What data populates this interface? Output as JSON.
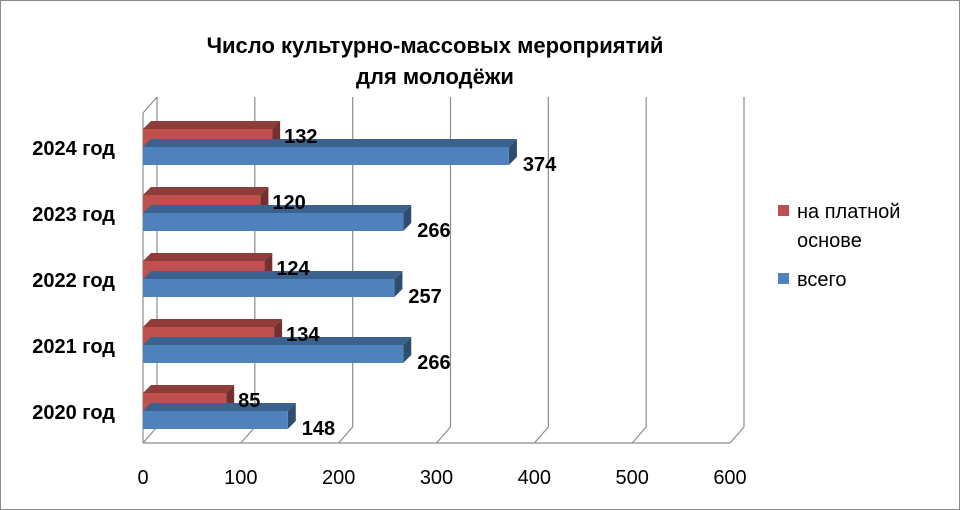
{
  "chart_data": {
    "type": "bar",
    "orientation": "horizontal",
    "style": "3d",
    "title_lines": [
      "Число культурно-массовых мероприятий",
      "для молодёжи"
    ],
    "categories": [
      "2024 год",
      "2023 год",
      "2022 год",
      "2021 год",
      "2020 год"
    ],
    "series": [
      {
        "name": "на платной основе",
        "values": [
          132,
          120,
          124,
          134,
          85
        ],
        "color": "#c0504d"
      },
      {
        "name": "всего",
        "values": [
          374,
          266,
          257,
          266,
          148
        ],
        "color": "#4f81bd"
      }
    ],
    "x_ticks": [
      0,
      100,
      200,
      300,
      400,
      500,
      600
    ],
    "xlim": [
      0,
      600
    ],
    "grid": true,
    "legend_position": "right",
    "data_labels": true
  }
}
